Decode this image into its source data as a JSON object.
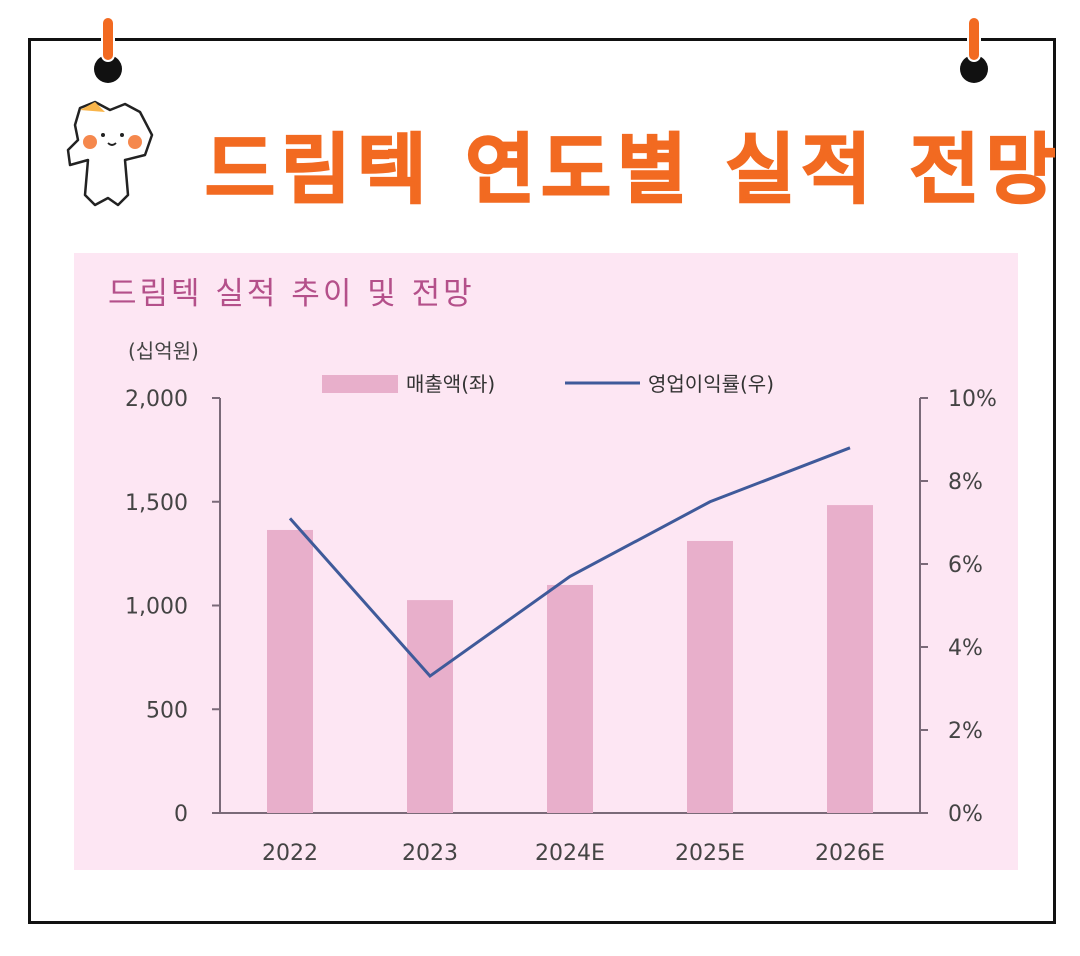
{
  "headline": "드림텍 연도별 실적 전망",
  "colors": {
    "headline": "#f26a21",
    "panel": "#fde6f3",
    "bar": "#e8afcb",
    "line": "#3f5a9a",
    "chart_title": "#b4508a",
    "axis": "#7a6a78"
  },
  "chart_data": {
    "type": "bar+line",
    "title": "드림텍 실적 추이 및 전망",
    "unit_left": "(십억원)",
    "categories": [
      "2022",
      "2023",
      "2024E",
      "2025E",
      "2026E"
    ],
    "series": [
      {
        "name": "매출액(좌)",
        "type": "bar",
        "axis": "left",
        "values": [
          1364,
          1026,
          1099,
          1311,
          1484
        ]
      },
      {
        "name": "영업이익률(우)",
        "type": "line",
        "axis": "right",
        "values": [
          7.1,
          3.3,
          5.7,
          7.5,
          8.8
        ]
      }
    ],
    "left_axis": {
      "range": [
        0,
        2000
      ],
      "ticks": [
        "0",
        "500",
        "1,000",
        "1,500",
        "2,000"
      ]
    },
    "right_axis": {
      "range": [
        0,
        10
      ],
      "ticks": [
        "0%",
        "2%",
        "4%",
        "6%",
        "8%",
        "10%"
      ]
    },
    "legend": "top",
    "grid": false
  }
}
